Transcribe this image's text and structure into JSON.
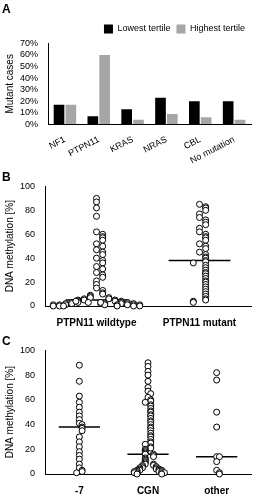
{
  "chart_data": [
    {
      "title": "A",
      "type": "bar",
      "categories": [
        "NF1",
        "PTPN11",
        "KRAS",
        "NRAS",
        "CBL",
        "No mutation"
      ],
      "series": [
        {
          "name": "Lowest tertile",
          "color": "#000000",
          "values": [
            17,
            7,
            13,
            23,
            20,
            20
          ]
        },
        {
          "name": "Highest tertile",
          "color": "#a6a6a6",
          "values": [
            17,
            60,
            4,
            9,
            6,
            4
          ]
        }
      ],
      "y_label": "Mutant cases",
      "ylim": [
        0,
        70
      ],
      "yticks": [
        {
          "value": 0,
          "label": "0%"
        },
        {
          "value": 10,
          "label": "10%"
        },
        {
          "value": 20,
          "label": "20%"
        },
        {
          "value": 30,
          "label": "30%"
        },
        {
          "value": 40,
          "label": "40%"
        },
        {
          "value": 50,
          "label": "50%"
        },
        {
          "value": 60,
          "label": "60%"
        },
        {
          "value": 70,
          "label": "70%"
        }
      ],
      "legend": "upper right",
      "grid": false
    },
    {
      "title": "B",
      "type": "scatter",
      "categories": [
        "PTPN11 wildtype",
        "PTPN11 mutant"
      ],
      "values": [
        [
          90,
          87,
          82,
          75,
          62,
          60,
          58,
          57,
          55,
          52,
          50,
          47,
          45,
          43,
          40,
          38,
          36,
          33,
          31,
          28,
          26,
          24,
          21,
          18,
          15,
          13,
          11,
          10,
          9,
          8,
          7,
          7,
          6,
          6,
          5,
          5,
          5,
          4,
          4,
          4,
          3,
          3,
          3,
          3,
          2,
          2,
          2,
          2,
          2,
          1,
          1,
          1,
          1,
          1,
          1,
          0,
          0,
          0,
          0,
          0,
          1,
          2,
          3,
          4,
          2,
          1,
          0,
          3
        ],
        [
          85,
          83,
          82,
          80,
          77,
          74,
          72,
          70,
          68,
          65,
          62,
          60,
          58,
          57,
          55,
          52,
          50,
          48,
          45,
          43,
          41,
          40,
          38,
          37,
          36,
          34,
          32,
          30,
          28,
          27,
          25,
          23,
          21,
          20,
          18,
          16,
          14,
          12,
          10,
          8,
          6,
          5,
          4,
          3
        ]
      ],
      "medians": [
        5,
        38
      ],
      "y_label": "DNA methylation [%]",
      "ylim": [
        0,
        100
      ],
      "yticks": [
        0,
        20,
        40,
        60,
        80,
        100
      ],
      "marker": "circle_open",
      "color": "#000000",
      "grid": false
    },
    {
      "title": "C",
      "type": "scatter",
      "categories": [
        "-7",
        "CGN",
        "other"
      ],
      "values": [
        [
          88,
          75,
          63,
          58,
          54,
          50,
          47,
          44,
          41,
          40,
          38,
          37,
          35,
          30,
          26,
          22,
          18,
          15,
          12,
          8,
          5,
          3,
          2,
          1
        ],
        [
          90,
          87,
          83,
          80,
          75,
          70,
          67,
          65,
          62,
          60,
          59,
          58,
          56,
          55,
          53,
          51,
          50,
          48,
          47,
          45,
          43,
          42,
          40,
          38,
          37,
          35,
          33,
          31,
          30,
          28,
          26,
          25,
          24,
          22,
          21,
          20,
          19,
          18,
          17,
          16,
          16,
          15,
          14,
          13,
          12,
          11,
          10,
          9,
          8,
          8,
          7,
          7,
          6,
          6,
          5,
          5,
          5,
          4,
          4,
          4,
          3,
          3,
          3,
          3,
          2,
          2,
          2,
          2,
          1,
          1,
          1,
          1,
          0,
          0
        ],
        [
          82,
          76,
          50,
          38,
          14,
          14,
          10,
          3,
          1,
          0
        ]
      ],
      "medians": [
        38,
        16,
        14
      ],
      "y_label": "DNA methylation [%]",
      "ylim": [
        0,
        100
      ],
      "yticks": [
        0,
        20,
        40,
        60,
        80,
        100
      ],
      "marker": "circle_open",
      "color": "#000000",
      "grid": false
    }
  ]
}
